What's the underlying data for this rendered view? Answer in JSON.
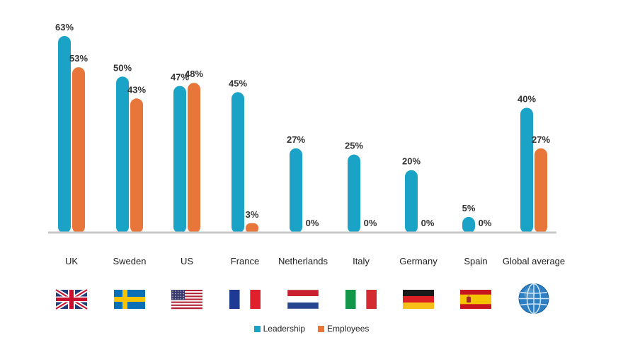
{
  "chart_data": {
    "type": "bar",
    "categories": [
      "UK",
      "Sweden",
      "US",
      "France",
      "Netherlands",
      "Italy",
      "Germany",
      "Spain",
      "Global average"
    ],
    "series": [
      {
        "name": "Leadership",
        "color": "#1aa3c6",
        "values": [
          63,
          50,
          47,
          45,
          27,
          25,
          20,
          5,
          40
        ]
      },
      {
        "name": "Employees",
        "color": "#e8763a",
        "values": [
          53,
          43,
          48,
          3,
          0,
          0,
          0,
          0,
          27
        ]
      }
    ],
    "value_suffix": "%",
    "ylim": [
      0,
      63
    ],
    "grid": false,
    "legend_position": "bottom-center",
    "flags": [
      "uk-flag",
      "sweden-flag",
      "us-flag",
      "france-flag",
      "netherlands-flag",
      "italy-flag",
      "germany-flag",
      "spain-flag",
      "globe-icon"
    ]
  }
}
